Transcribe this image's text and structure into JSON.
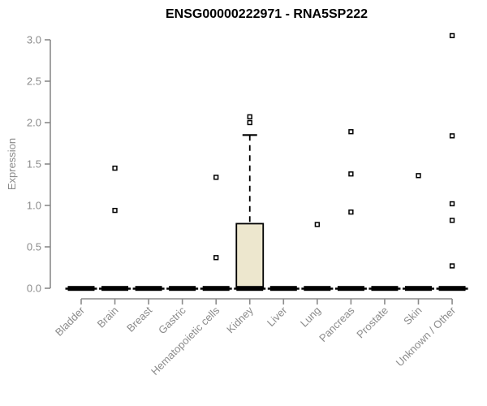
{
  "chart_data": {
    "type": "boxplot",
    "title": "ENSG00000222971 - RNA5SP222",
    "xlabel": "",
    "ylabel": "Expression",
    "ylim": [
      0.0,
      3.0
    ],
    "yticks": [
      0.0,
      0.5,
      1.0,
      1.5,
      2.0,
      2.5,
      3.0
    ],
    "grid": false,
    "legend": null,
    "categories": [
      "Bladder",
      "Brain",
      "Breast",
      "Gastric",
      "Hematopoietic cells",
      "Kidney",
      "Liver",
      "Lung",
      "Pancreas",
      "Prostate",
      "Skin",
      "Unknown / Other"
    ],
    "boxes": [
      {
        "category": "Bladder",
        "q1": 0,
        "median": 0,
        "q3": 0,
        "whisker_low": 0,
        "whisker_high": 0,
        "outliers": []
      },
      {
        "category": "Brain",
        "q1": 0,
        "median": 0,
        "q3": 0,
        "whisker_low": 0,
        "whisker_high": 0,
        "outliers": [
          1.45,
          0.94
        ]
      },
      {
        "category": "Breast",
        "q1": 0,
        "median": 0,
        "q3": 0,
        "whisker_low": 0,
        "whisker_high": 0,
        "outliers": []
      },
      {
        "category": "Gastric",
        "q1": 0,
        "median": 0,
        "q3": 0,
        "whisker_low": 0,
        "whisker_high": 0,
        "outliers": []
      },
      {
        "category": "Hematopoietic cells",
        "q1": 0,
        "median": 0,
        "q3": 0,
        "whisker_low": 0,
        "whisker_high": 0,
        "outliers": [
          1.34,
          0.37
        ]
      },
      {
        "category": "Kidney",
        "q1": 0,
        "median": 0,
        "q3": 0.78,
        "whisker_low": 0,
        "whisker_high": 1.85,
        "outliers": [
          2.07,
          2.0
        ]
      },
      {
        "category": "Liver",
        "q1": 0,
        "median": 0,
        "q3": 0,
        "whisker_low": 0,
        "whisker_high": 0,
        "outliers": []
      },
      {
        "category": "Lung",
        "q1": 0,
        "median": 0,
        "q3": 0,
        "whisker_low": 0,
        "whisker_high": 0,
        "outliers": [
          0.77
        ]
      },
      {
        "category": "Pancreas",
        "q1": 0,
        "median": 0,
        "q3": 0,
        "whisker_low": 0,
        "whisker_high": 0,
        "outliers": [
          1.89,
          1.38,
          0.92
        ]
      },
      {
        "category": "Prostate",
        "q1": 0,
        "median": 0,
        "q3": 0,
        "whisker_low": 0,
        "whisker_high": 0,
        "outliers": []
      },
      {
        "category": "Skin",
        "q1": 0,
        "median": 0,
        "q3": 0,
        "whisker_low": 0,
        "whisker_high": 0,
        "outliers": [
          1.36
        ]
      },
      {
        "category": "Unknown / Other",
        "q1": 0,
        "median": 0,
        "q3": 0,
        "whisker_low": 0,
        "whisker_high": 0,
        "outliers": [
          3.05,
          1.84,
          1.02,
          0.82,
          0.27
        ]
      }
    ]
  },
  "colors": {
    "background": "#ffffff",
    "title_text": "#000000",
    "axis": "#8b8b8b",
    "tick_text": "#8b8b8b",
    "box_fill": "#ede7ce",
    "box_stroke": "#000000",
    "median_bar": "#000000",
    "outlier_fill": "#ffffff",
    "outlier_stroke": "#000000"
  }
}
